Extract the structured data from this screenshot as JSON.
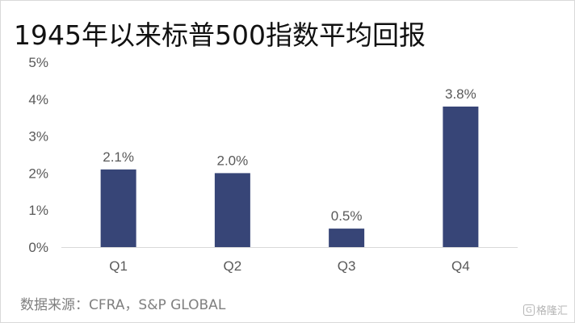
{
  "title": "1945年以来标普500指数平均回报",
  "source": "数据来源：CFRA，S&P GLOBAL",
  "watermark": {
    "text": "格隆汇",
    "icon": "g-logo-icon"
  },
  "colors": {
    "bar": "#374577",
    "axis": "#d9d9d9",
    "text": "#595959"
  },
  "chart_data": {
    "type": "bar",
    "title": "1945年以来标普500指数平均回报",
    "xlabel": "",
    "ylabel": "",
    "categories": [
      "Q1",
      "Q2",
      "Q3",
      "Q4"
    ],
    "values": [
      2.1,
      2.0,
      0.5,
      3.8
    ],
    "data_labels": [
      "2.1%",
      "2.0%",
      "0.5%",
      "3.8%"
    ],
    "ylim": [
      0,
      5
    ],
    "yticks": [
      0,
      1,
      2,
      3,
      4,
      5
    ],
    "ytick_labels": [
      "0%",
      "1%",
      "2%",
      "3%",
      "4%",
      "5%"
    ],
    "grid": false,
    "legend": "none"
  }
}
